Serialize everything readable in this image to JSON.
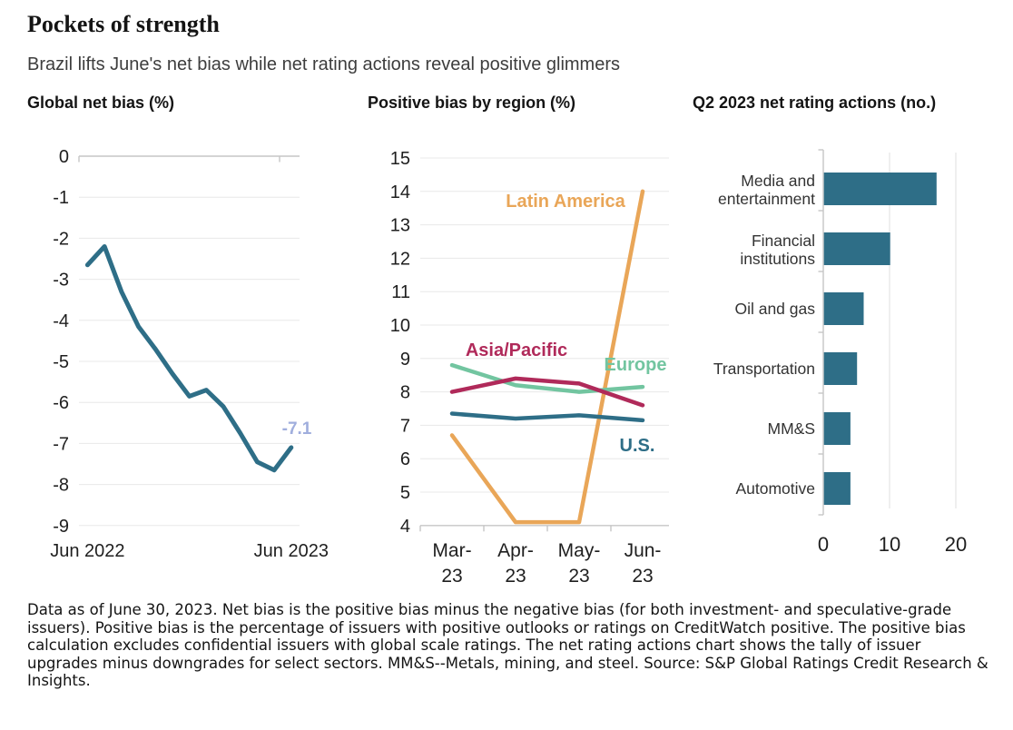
{
  "header": {
    "title": "Pockets of strength",
    "subtitle": "Brazil lifts June's net bias while net rating actions reveal positive glimmers"
  },
  "colors": {
    "teal": "#2e6e87",
    "orange": "#e9a658",
    "crimson": "#b02a5a",
    "green": "#72c5a0",
    "annotation": "#a0aedd",
    "grid": "#e8e8e8",
    "axis": "#c6c6c6",
    "tick_text": "#1f1f1f",
    "category_text": "#333333"
  },
  "chart_data": [
    {
      "type": "line",
      "title": "Global net bias (%)",
      "x": [
        "Jun 2022",
        "Jul 2022",
        "Aug 2022",
        "Sep 2022",
        "Oct 2022",
        "Nov 2022",
        "Dec 2022",
        "Jan 2023",
        "Feb 2023",
        "Mar 2023",
        "Apr 2023",
        "May 2023",
        "Jun 2023"
      ],
      "x_axis_labels": [
        {
          "text": "Jun 2022",
          "index": 0
        },
        {
          "text": "Jun 2023",
          "index": 12
        }
      ],
      "ylim": [
        -9,
        0
      ],
      "yticks": [
        0,
        -1,
        -2,
        -3,
        -4,
        -5,
        -6,
        -7,
        -8,
        -9
      ],
      "grid": "horizontal",
      "legend": "none",
      "series": [
        {
          "name": "Global net bias",
          "color": "#2e6e87",
          "values": [
            -2.65,
            -2.2,
            -3.3,
            -4.15,
            -4.7,
            -5.3,
            -5.85,
            -5.7,
            -6.1,
            -6.75,
            -7.45,
            -7.65,
            -7.1
          ]
        }
      ],
      "annotation": {
        "text": "-7.1",
        "value": -7.1,
        "color": "#a0aedd"
      }
    },
    {
      "type": "line",
      "title": "Positive bias by region (%)",
      "x": [
        "Mar-23",
        "Apr-23",
        "May-23",
        "Jun-23"
      ],
      "x_tick_lines": [
        [
          "Mar-",
          "23"
        ],
        [
          "Apr-",
          "23"
        ],
        [
          "May-",
          "23"
        ],
        [
          "Jun-",
          "23"
        ]
      ],
      "ylim": [
        4,
        15
      ],
      "yticks": [
        15,
        14,
        13,
        12,
        11,
        10,
        9,
        8,
        7,
        6,
        5,
        4
      ],
      "grid": "horizontal",
      "legend": "inline-labels",
      "series": [
        {
          "name": "Latin America",
          "color": "#e9a658",
          "values": [
            6.7,
            4.1,
            4.1,
            14
          ]
        },
        {
          "name": "Asia/Pacific",
          "color": "#b02a5a",
          "values": [
            8.0,
            8.4,
            8.25,
            7.6
          ]
        },
        {
          "name": "Europe",
          "color": "#72c5a0",
          "values": [
            8.8,
            8.2,
            8.0,
            8.15
          ]
        },
        {
          "name": "U.S.",
          "color": "#2e6e87",
          "values": [
            7.35,
            7.2,
            7.3,
            7.15
          ]
        }
      ]
    },
    {
      "type": "bar",
      "orientation": "horizontal",
      "title": "Q2 2023 net rating actions (no.)",
      "categories": [
        "Media and entertainment",
        "Financial institutions",
        "Oil and gas",
        "Transportation",
        "MM&S",
        "Automotive"
      ],
      "category_label_lines": [
        [
          "Media and",
          "entertainment"
        ],
        [
          "Financial",
          "institutions"
        ],
        [
          "Oil and gas"
        ],
        [
          "Transportation"
        ],
        [
          "MM&S"
        ],
        [
          "Automotive"
        ]
      ],
      "values": [
        17,
        10,
        6,
        5,
        4,
        4
      ],
      "xlim": [
        0,
        20
      ],
      "xticks": [
        0,
        10,
        20
      ],
      "grid": "vertical",
      "legend": "none",
      "bar_color": "#2e6e87"
    }
  ],
  "footer": {
    "note": "Data as of June 30, 2023. Net bias is the positive bias minus the negative bias (for both investment- and speculative-grade issuers). Positive bias is the percentage of issuers with positive outlooks or ratings on CreditWatch positive. The positive bias calculation excludes confidential issuers with global scale ratings. The net rating actions chart shows the tally of issuer upgrades minus downgrades for select sectors. MM&S--Metals, mining, and steel. Source: S&P Global Ratings Credit Research & Insights."
  }
}
